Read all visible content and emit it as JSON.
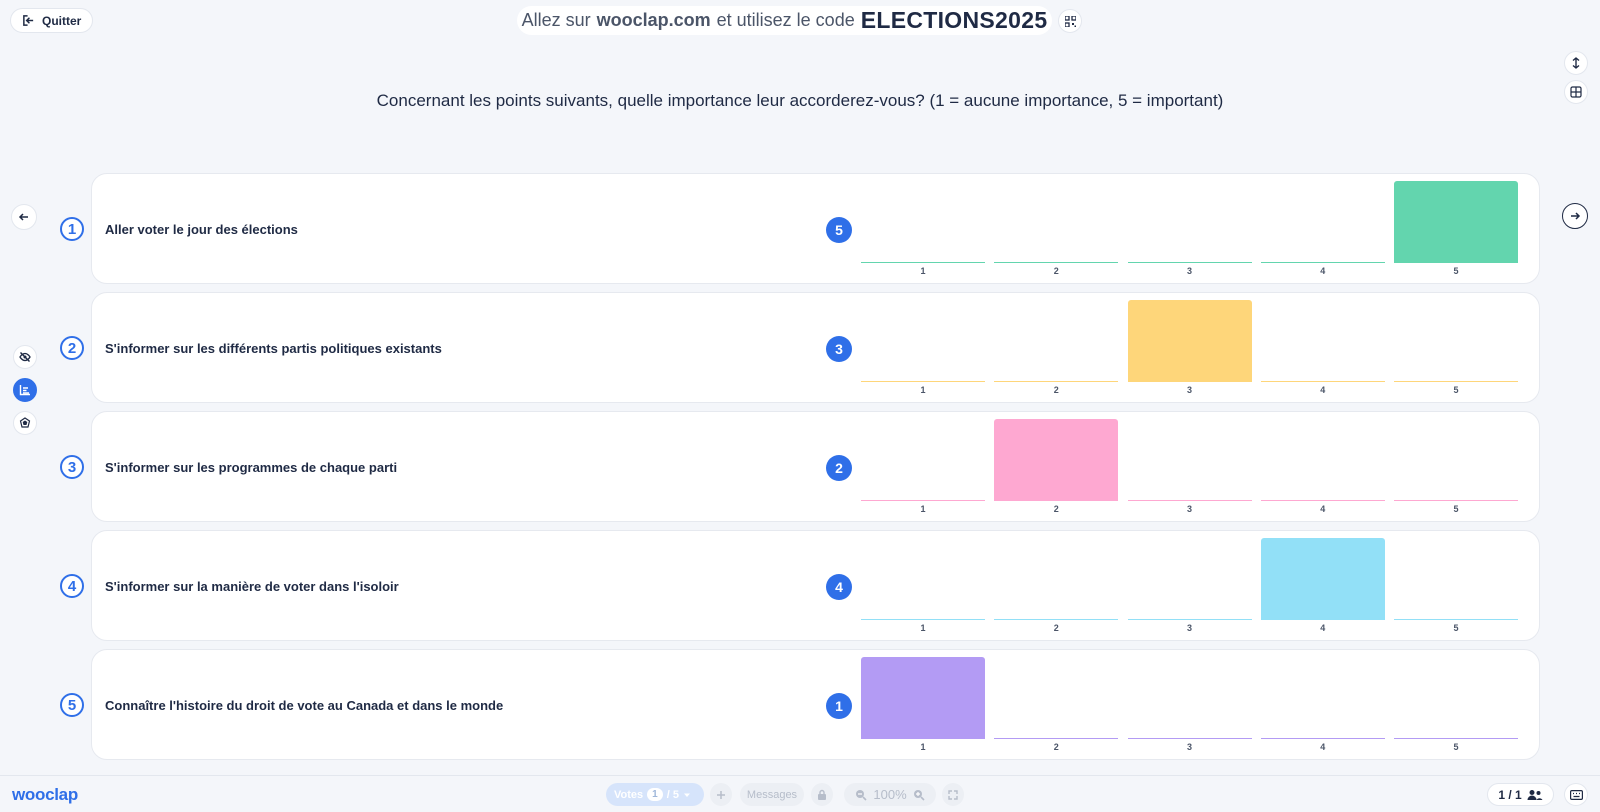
{
  "header": {
    "quit_label": "Quitter",
    "join_prefix": "Allez sur",
    "join_url": "wooclap.com",
    "join_middle": "et utilisez le code",
    "join_code": "ELECTIONS2025"
  },
  "question": {
    "title": "Concernant les points suivants, quelle importance leur accorderez-vous? (1 = aucune importance, 5 = important)"
  },
  "scale_labels": [
    "1",
    "2",
    "3",
    "4",
    "5"
  ],
  "rows": [
    {
      "number": "1",
      "label": "Aller voter le jour des élections",
      "answer": "5",
      "color": "#63d5ae"
    },
    {
      "number": "2",
      "label": "S'informer sur les différents partis politiques existants",
      "answer": "3",
      "color": "#fed67a"
    },
    {
      "number": "3",
      "label": "S'informer sur les programmes de chaque parti",
      "answer": "2",
      "color": "#fea8d1"
    },
    {
      "number": "4",
      "label": "S'informer sur la manière de voter dans l'isoloir",
      "answer": "4",
      "color": "#92e0f7"
    },
    {
      "number": "5",
      "label": "Connaître l'histoire du droit de vote au Canada et dans le monde",
      "answer": "1",
      "color": "#b39bf4"
    }
  ],
  "chart_data": {
    "type": "bar",
    "categories": [
      "1",
      "2",
      "3",
      "4",
      "5"
    ],
    "series": [
      {
        "name": "Aller voter le jour des élections",
        "values": [
          0,
          0,
          0,
          0,
          1
        ]
      },
      {
        "name": "S'informer sur les différents partis politiques existants",
        "values": [
          0,
          0,
          1,
          0,
          0
        ]
      },
      {
        "name": "S'informer sur les programmes de chaque parti",
        "values": [
          0,
          1,
          0,
          0,
          0
        ]
      },
      {
        "name": "S'informer sur la manière de voter dans l'isoloir",
        "values": [
          0,
          0,
          0,
          1,
          0
        ]
      },
      {
        "name": "Connaître l'histoire du droit de vote au Canada et dans le monde",
        "values": [
          1,
          0,
          0,
          0,
          0
        ]
      }
    ],
    "ylim": [
      0,
      1
    ]
  },
  "footer": {
    "logo": "wooclap",
    "votes_label": "Votes",
    "votes_current": "1",
    "votes_total": "/ 5",
    "messages_label": "Messages",
    "zoom_level": "100%",
    "participants": "1 / 1"
  },
  "colors": {
    "accent": "#2f6fe8",
    "text": "#1f2a44",
    "background": "#f4f6fa"
  }
}
